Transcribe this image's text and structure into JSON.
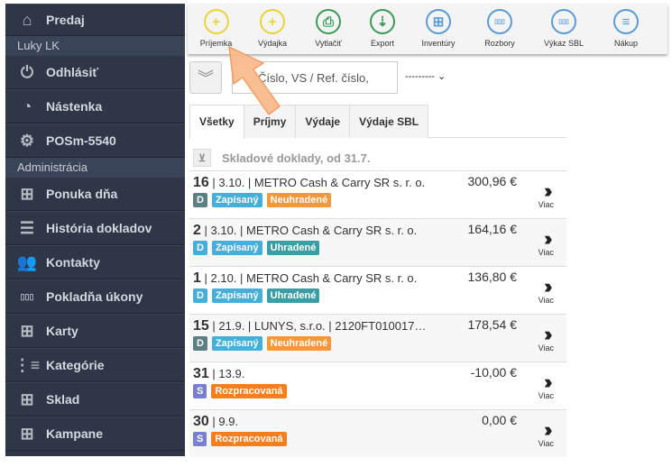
{
  "sidebar": {
    "items": [
      {
        "label": "Predaj",
        "icon": "home-icon"
      },
      {
        "section": "Luky LK"
      },
      {
        "label": "Odhlásiť",
        "icon": "power-icon"
      },
      {
        "label": "Nástenka",
        "icon": "dashboard-icon"
      },
      {
        "label": "POSm-5540",
        "icon": "gear-icon"
      },
      {
        "section": "Administrácia"
      },
      {
        "label": "Ponuka dňa",
        "icon": "boxes-star-icon"
      },
      {
        "label": "História dokladov",
        "icon": "list-icon"
      },
      {
        "label": "Kontakty",
        "icon": "users-icon"
      },
      {
        "label": "Pokladňa úkony",
        "icon": "bar-chart-icon"
      },
      {
        "label": "Karty",
        "icon": "boxes-icon"
      },
      {
        "label": "Kategórie",
        "icon": "tree-icon"
      },
      {
        "label": "Sklad",
        "icon": "boxes-icon"
      },
      {
        "label": "Kampane",
        "icon": "boxes-icon"
      }
    ]
  },
  "toolbar": [
    {
      "label": "Príjemka",
      "icon": "plus-icon",
      "color": "#e8d33a"
    },
    {
      "label": "Výdajka",
      "icon": "plus-icon",
      "color": "#e8d33a"
    },
    {
      "label": "Vytlačiť",
      "icon": "print-icon",
      "color": "#3a9a5a"
    },
    {
      "label": "Export",
      "icon": "download-icon",
      "color": "#3a9a5a"
    },
    {
      "label": "Inventúry",
      "icon": "boxes-icon",
      "color": "#5b9bd5"
    },
    {
      "label": "Rozbory",
      "icon": "bar-chart-icon",
      "color": "#5b9bd5"
    },
    {
      "label": "Výkaz SBL",
      "icon": "bar-chart-icon",
      "color": "#5b9bd5"
    },
    {
      "label": "Nákup",
      "icon": "menu-icon",
      "color": "#5b9bd5"
    }
  ],
  "search": {
    "placeholder": "Číslo, VS / Ref. číslo,",
    "select_value": "---------"
  },
  "tabs": [
    "Všetky",
    "Príjmy",
    "Výdaje",
    "Výdaje SBL"
  ],
  "heading": "Skladové doklady, od 31.7.",
  "more_label": "Viac",
  "rows": [
    {
      "num": "16",
      "rest": " | 3.10. | METRO Cash & Carry SR s. r. o.",
      "amount": "300,96 €",
      "badges": [
        {
          "t": "D",
          "c": "#5c7f84"
        },
        {
          "t": "Zapísaný",
          "c": "#45afd9"
        },
        {
          "t": "Neuhradené",
          "c": "#f5973a"
        }
      ]
    },
    {
      "num": "2",
      "rest": " | 3.10. | METRO Cash & Carry SR s. r. o.",
      "amount": "164,16 €",
      "badges": [
        {
          "t": "D",
          "c": "#45afd9"
        },
        {
          "t": "Zapísaný",
          "c": "#45afd9"
        },
        {
          "t": "Uhradené",
          "c": "#3a9ea4"
        }
      ]
    },
    {
      "num": "1",
      "rest": " | 2.10. | METRO Cash & Carry SR s. r. o.",
      "amount": "136,80 €",
      "badges": [
        {
          "t": "D",
          "c": "#45afd9"
        },
        {
          "t": "Zapísaný",
          "c": "#45afd9"
        },
        {
          "t": "Uhradené",
          "c": "#3a9ea4"
        }
      ]
    },
    {
      "num": "15",
      "rest": " | 21.9. | LUNYS, s.r.o. | 2120FT010017…",
      "amount": "178,54 €",
      "badges": [
        {
          "t": "D",
          "c": "#5c7f84"
        },
        {
          "t": "Zapísaný",
          "c": "#45afd9"
        },
        {
          "t": "Neuhradené",
          "c": "#f5973a"
        }
      ]
    },
    {
      "num": "31",
      "rest": " | 13.9.",
      "amount": "-10,00 €",
      "badges": [
        {
          "t": "S",
          "c": "#7a7fd0"
        },
        {
          "t": "Rozpracovaná",
          "c": "#f57f1f"
        }
      ]
    },
    {
      "num": "30",
      "rest": " | 9.9.",
      "amount": "0,00 €",
      "badges": [
        {
          "t": "S",
          "c": "#7a7fd0"
        },
        {
          "t": "Rozpracovaná",
          "c": "#f57f1f"
        }
      ]
    }
  ]
}
